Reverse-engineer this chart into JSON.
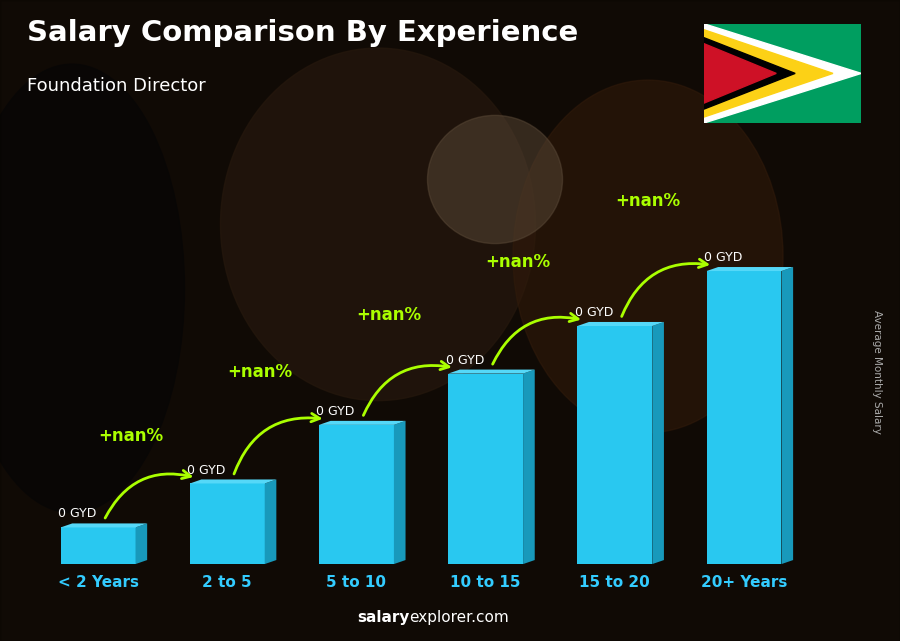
{
  "title": "Salary Comparison By Experience",
  "subtitle": "Foundation Director",
  "ylabel": "Average Monthly Salary",
  "categories": [
    "< 2 Years",
    "2 to 5",
    "5 to 10",
    "10 to 15",
    "15 to 20",
    "20+ Years"
  ],
  "bar_heights": [
    1.0,
    2.2,
    3.8,
    5.2,
    6.5,
    8.0
  ],
  "bar_color_face": "#29c8f0",
  "bar_color_side": "#1899bb",
  "bar_color_top": "#55d8f8",
  "value_labels": [
    "0 GYD",
    "0 GYD",
    "0 GYD",
    "0 GYD",
    "0 GYD",
    "0 GYD"
  ],
  "pct_labels": [
    "+nan%",
    "+nan%",
    "+nan%",
    "+nan%",
    "+nan%"
  ],
  "pct_color": "#aaff00",
  "arrow_color": "#aaff00",
  "footer_regular": "explorer.com",
  "footer_bold": "salary",
  "watermark_color": "#bbbbbb",
  "ylim": [
    0,
    10.5
  ],
  "bg_top_color": "#1a0a00",
  "bg_bottom_color": "#0a0808",
  "flag_green": "#009e60",
  "flag_white": "#ffffff",
  "flag_gold": "#fcd116",
  "flag_black": "#000000",
  "flag_red": "#ce1126"
}
